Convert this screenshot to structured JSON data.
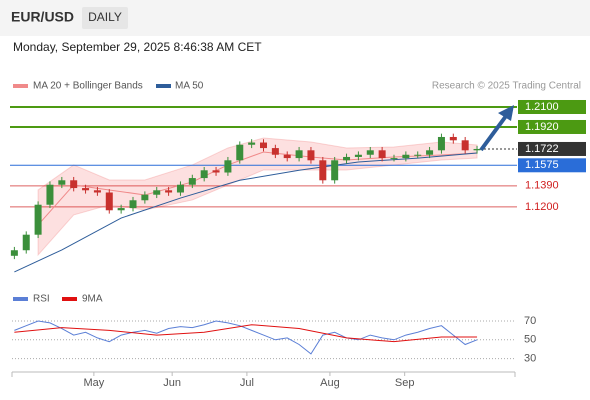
{
  "chart_data": {
    "type": "candlestick",
    "title": "EUR/USD",
    "timeframe": "DAILY",
    "subtitle": "Monday, September 29, 2025 8:46:38 AM CET",
    "source": "Research © 2025 Trading Central",
    "up_color": "#3b8f3b",
    "down_color": "#c8312e",
    "xlim": [
      -0.2,
      42.2
    ],
    "xticks": [
      {
        "value": 6.7,
        "label": "May"
      },
      {
        "value": 13.3,
        "label": "Jun"
      },
      {
        "value": 19.6,
        "label": "Jul"
      },
      {
        "value": 26.6,
        "label": "Aug"
      },
      {
        "value": 32.9,
        "label": "Sep"
      }
    ],
    "ylim": [
      1.0497,
      1.2163
    ],
    "ohlc": {
      "open": [
        1.076,
        1.081,
        1.095,
        1.122,
        1.14,
        1.144,
        1.137,
        1.135,
        1.133,
        1.117,
        1.119,
        1.126,
        1.131,
        1.135,
        1.133,
        1.14,
        1.146,
        1.153,
        1.151,
        1.162,
        1.176,
        1.178,
        1.173,
        1.167,
        1.164,
        1.171,
        1.162,
        1.144,
        1.162,
        1.165,
        1.167,
        1.171,
        1.164,
        1.164,
        1.167,
        1.167,
        1.171,
        1.183,
        1.18,
        1.171
      ],
      "high": [
        1.084,
        1.098,
        1.125,
        1.143,
        1.147,
        1.147,
        1.14,
        1.138,
        1.136,
        1.122,
        1.129,
        1.134,
        1.138,
        1.138,
        1.143,
        1.149,
        1.156,
        1.156,
        1.165,
        1.179,
        1.181,
        1.181,
        1.176,
        1.17,
        1.174,
        1.174,
        1.165,
        1.165,
        1.168,
        1.17,
        1.174,
        1.174,
        1.167,
        1.17,
        1.17,
        1.174,
        1.186,
        1.186,
        1.183,
        1.175
      ],
      "low": [
        1.073,
        1.078,
        1.092,
        1.119,
        1.137,
        1.134,
        1.132,
        1.13,
        1.114,
        1.114,
        1.116,
        1.123,
        1.128,
        1.13,
        1.13,
        1.137,
        1.143,
        1.148,
        1.148,
        1.159,
        1.173,
        1.17,
        1.164,
        1.161,
        1.161,
        1.159,
        1.141,
        1.141,
        1.159,
        1.162,
        1.164,
        1.161,
        1.161,
        1.161,
        1.164,
        1.164,
        1.168,
        1.177,
        1.168,
        1.168
      ],
      "close": [
        1.081,
        1.095,
        1.122,
        1.14,
        1.144,
        1.137,
        1.135,
        1.133,
        1.117,
        1.119,
        1.126,
        1.131,
        1.135,
        1.133,
        1.14,
        1.146,
        1.153,
        1.151,
        1.162,
        1.176,
        1.178,
        1.173,
        1.167,
        1.164,
        1.171,
        1.162,
        1.144,
        1.162,
        1.165,
        1.167,
        1.171,
        1.164,
        1.164,
        1.167,
        1.167,
        1.171,
        1.183,
        1.18,
        1.171,
        1.1722
      ]
    },
    "ma20": {
      "name": "MA 20 + Bollinger Bands",
      "color": "#f08a8a",
      "band_color": "#fde0e0",
      "x": [
        2,
        5,
        8,
        11,
        15,
        18,
        21,
        25,
        28,
        32,
        36,
        39
      ],
      "values": [
        1.1038,
        1.1398,
        1.1353,
        1.1308,
        1.1425,
        1.1578,
        1.1695,
        1.165,
        1.1623,
        1.165,
        1.1668,
        1.1686
      ],
      "upper": [
        1.1353,
        1.1578,
        1.1443,
        1.1443,
        1.1578,
        1.1731,
        1.1821,
        1.1785,
        1.1731,
        1.174,
        1.1785,
        1.1758
      ],
      "lower": [
        1.0768,
        1.1128,
        1.1218,
        1.1173,
        1.1263,
        1.1398,
        1.1533,
        1.1533,
        1.1533,
        1.1578,
        1.1623,
        1.1641
      ]
    },
    "ma50": {
      "name": "MA 50",
      "color": "#2e5d9a",
      "x": [
        0,
        4,
        9,
        14,
        19,
        24,
        29,
        34,
        39
      ],
      "values": [
        1.0615,
        1.0813,
        1.11,
        1.128,
        1.144,
        1.153,
        1.1605,
        1.164,
        1.1686
      ]
    },
    "levels": [
      {
        "value": 1.21,
        "label": "1.2100",
        "kind": "resistance",
        "color": "#4c9a12"
      },
      {
        "value": 1.192,
        "label": "1.1920",
        "kind": "resistance",
        "color": "#4c9a12"
      },
      {
        "value": 1.1722,
        "label": "1.1722",
        "kind": "last",
        "color": "#333333"
      },
      {
        "value": 1.1575,
        "label": "1.1575",
        "kind": "pivot",
        "color": "#2a6dd8"
      },
      {
        "value": 1.139,
        "label": "1.1390",
        "kind": "support",
        "color": "#d02020"
      },
      {
        "value": 1.12,
        "label": "1.1200",
        "kind": "support",
        "color": "#d02020"
      }
    ],
    "rsi": {
      "name": "RSI",
      "color": "#5b7fd6",
      "values": [
        60,
        65,
        70,
        68,
        62,
        55,
        58,
        52,
        48,
        55,
        58,
        60,
        57,
        62,
        64,
        63,
        66,
        70,
        68,
        65,
        60,
        55,
        50,
        52,
        45,
        35,
        55,
        58,
        52,
        50,
        55,
        52,
        50,
        55,
        58,
        62,
        65,
        55,
        45,
        50
      ],
      "ylim": [
        20,
        87
      ],
      "yticks": [
        70,
        50,
        30
      ],
      "ma": {
        "name": "9MA",
        "color": "#e01010",
        "x": [
          0,
          4,
          8,
          12,
          16,
          20,
          24,
          28,
          32,
          36,
          39
        ],
        "values": [
          58,
          63,
          60,
          55,
          58,
          66,
          62,
          52,
          48,
          53,
          53
        ]
      }
    }
  }
}
